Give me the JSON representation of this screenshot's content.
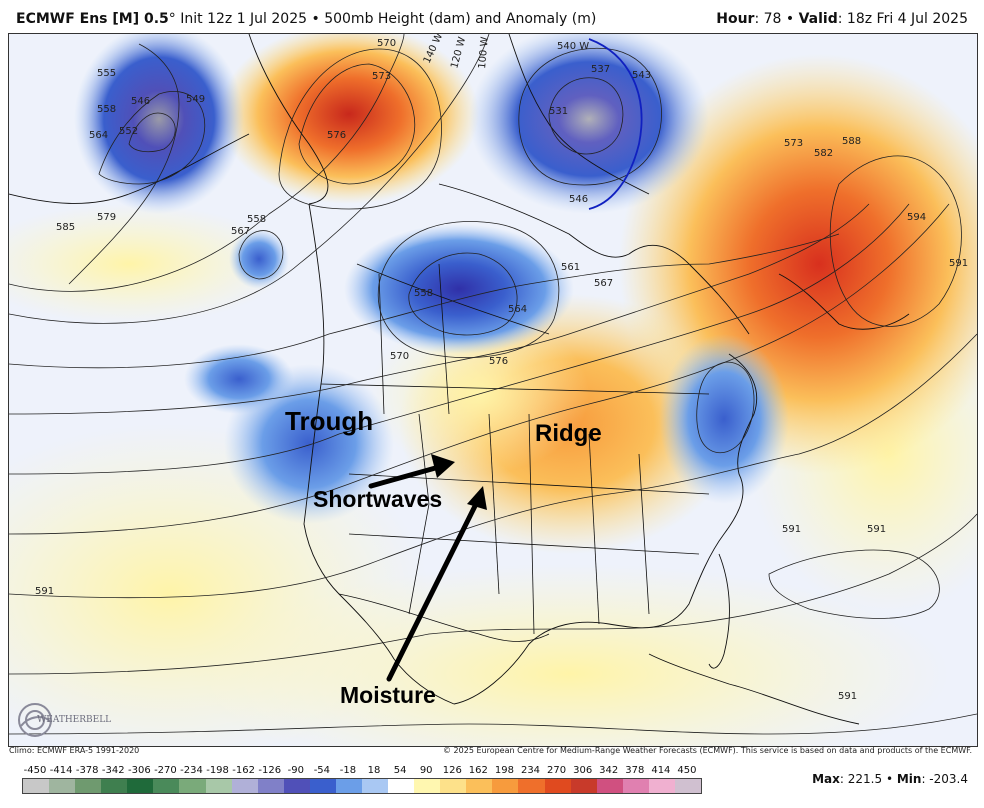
{
  "header": {
    "model": "ECMWF Ens [M] 0.5",
    "degree": "°",
    "init": "Init 12z 1 Jul 2025",
    "bullet": "•",
    "product": "500mb Height (dam) and Anomaly (m)",
    "hour_label": "Hour",
    "hour_value": ": 78",
    "bullet2": "•",
    "valid_label": "Valid",
    "valid_value": ": 18z Fri 4 Jul 2025"
  },
  "annotations": {
    "trough": "Trough",
    "ridge": "Ridge",
    "shortwaves": "Shortwaves",
    "moisture": "Moisture"
  },
  "contour_labels": {
    "l1": "570",
    "l2": "573",
    "l3": "576",
    "l4": "555",
    "l5": "558",
    "l6": "546",
    "l7": "552",
    "l8": "549",
    "l9": "564",
    "l10": "585",
    "l11": "579",
    "l12": "567",
    "l13": "558",
    "l14": "558",
    "l15": "570",
    "l16": "576",
    "l17": "564",
    "l18": "561",
    "l19": "567",
    "l20": "537",
    "l21": "543",
    "l22": "531",
    "l23": "546",
    "l24": "573",
    "l25": "582",
    "l26": "588",
    "l27": "594",
    "l28": "591",
    "l29": "591",
    "l30": "591",
    "l31": "591",
    "l32": "591",
    "l33": "540 W",
    "l34": "140 W",
    "l35": "120 W",
    "l36": "100 W"
  },
  "logo": {
    "text": "WEATHERBELL"
  },
  "footer": {
    "climo": "Climo: ECMWF ERA-5 1991-2020",
    "copyright": "© 2025 European Centre for Medium-Range Weather Forecasts (ECMWF). This service is based on data and products of the ECMWF."
  },
  "colorbar": {
    "ticks": [
      "-450",
      "-414",
      "-378",
      "-342",
      "-306",
      "-270",
      "-234",
      "-198",
      "-162",
      "-126",
      "-90",
      "-54",
      "-18",
      "18",
      "54",
      "90",
      "126",
      "162",
      "198",
      "234",
      "270",
      "306",
      "342",
      "378",
      "414",
      "450"
    ],
    "colors": [
      "#c8c8c8",
      "#9fb59f",
      "#6f9a6f",
      "#3f7f4f",
      "#1f6a3a",
      "#4a8a5a",
      "#7aaa7a",
      "#a8c8a8",
      "#b0b0d8",
      "#8080c8",
      "#5050b8",
      "#3a5fcd",
      "#6b9ee8",
      "#a9c8f3",
      "#ffffff",
      "#fff7b0",
      "#fde18a",
      "#fbbf5a",
      "#f79b3d",
      "#ef6f2b",
      "#e04a1f",
      "#c83a2a",
      "#d05080",
      "#e080b0",
      "#f0b0d0",
      "#d0c0d0"
    ]
  },
  "stats": {
    "max_label": "Max",
    "max_value": ": 221.5",
    "bullet": "•",
    "min_label": "Min",
    "min_value": ": -203.4"
  }
}
